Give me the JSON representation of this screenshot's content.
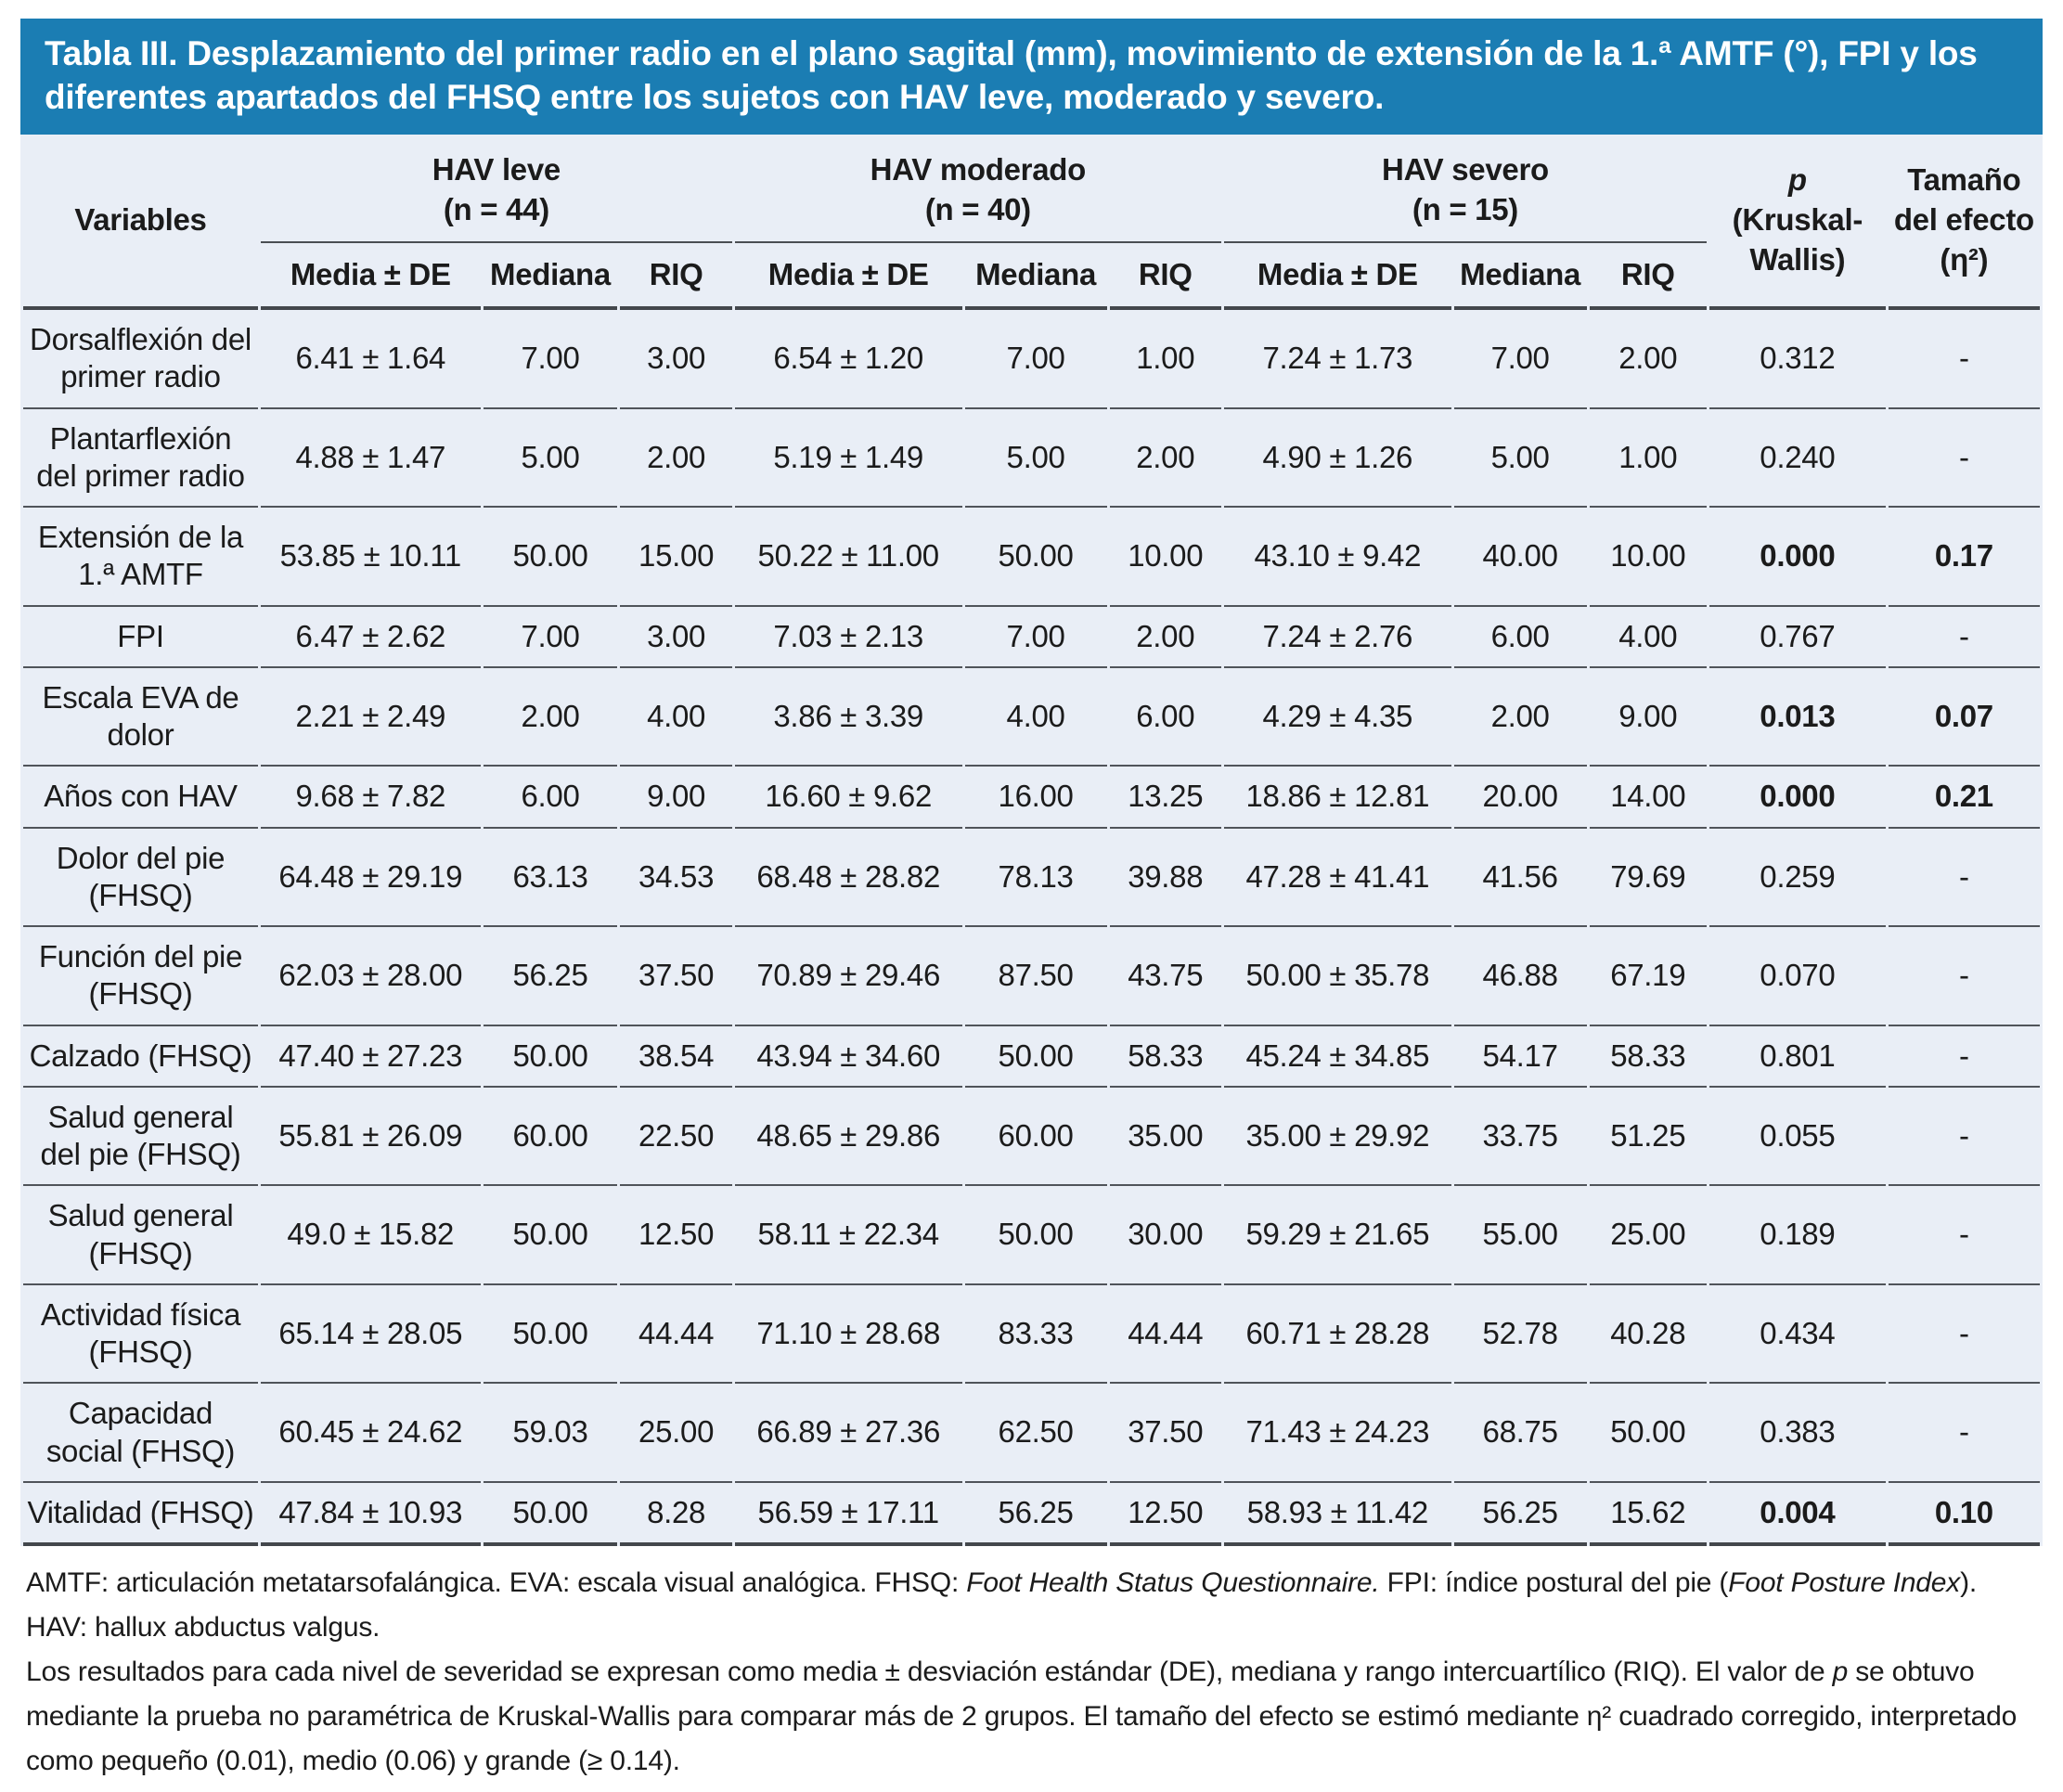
{
  "title": "Tabla III. Desplazamiento del primer radio en el plano sagital (mm), movimiento de extensión de la 1.ª AMTF (°), FPI y los diferentes apartados del FHSQ entre los sujetos con HAV leve, moderado y severo.",
  "colors": {
    "title_bar_bg": "#1b7db3",
    "title_text": "#ffffff",
    "table_bg": "#e9eef6",
    "rule": "#4a4e53",
    "text": "#1b1b1b"
  },
  "header": {
    "variables": "Variables",
    "groups": [
      {
        "name": "HAV leve",
        "n": "(n = 44)"
      },
      {
        "name": "HAV moderado",
        "n": "(n = 40)"
      },
      {
        "name": "HAV severo",
        "n": "(n = 15)"
      }
    ],
    "stat_cols": [
      "Media ± DE",
      "Mediana",
      "RIQ"
    ],
    "p_label": "p",
    "p_sub": "(Kruskal-Wallis)",
    "effect_label": "Tamaño del efecto (η²)"
  },
  "rows": [
    {
      "label": "Dorsalflexión del primer radio",
      "sig": false,
      "cells": [
        "6.41 ± 1.64",
        "7.00",
        "3.00",
        "6.54 ± 1.20",
        "7.00",
        "1.00",
        "7.24 ± 1.73",
        "7.00",
        "2.00",
        "0.312",
        "-"
      ]
    },
    {
      "label": "Plantarflexión del primer radio",
      "sig": false,
      "cells": [
        "4.88 ± 1.47",
        "5.00",
        "2.00",
        "5.19 ± 1.49",
        "5.00",
        "2.00",
        "4.90 ± 1.26",
        "5.00",
        "1.00",
        "0.240",
        "-"
      ]
    },
    {
      "label": "Extensión de la 1.ª AMTF",
      "sig": true,
      "cells": [
        "53.85 ± 10.11",
        "50.00",
        "15.00",
        "50.22 ± 11.00",
        "50.00",
        "10.00",
        "43.10 ± 9.42",
        "40.00",
        "10.00",
        "0.000",
        "0.17"
      ]
    },
    {
      "label": "FPI",
      "sig": false,
      "cells": [
        "6.47 ± 2.62",
        "7.00",
        "3.00",
        "7.03 ± 2.13",
        "7.00",
        "2.00",
        "7.24 ± 2.76",
        "6.00",
        "4.00",
        "0.767",
        "-"
      ]
    },
    {
      "label": "Escala EVA de dolor",
      "sig": true,
      "cells": [
        "2.21 ± 2.49",
        "2.00",
        "4.00",
        "3.86 ± 3.39",
        "4.00",
        "6.00",
        "4.29 ± 4.35",
        "2.00",
        "9.00",
        "0.013",
        "0.07"
      ]
    },
    {
      "label": "Años con HAV",
      "sig": true,
      "cells": [
        "9.68 ± 7.82",
        "6.00",
        "9.00",
        "16.60 ± 9.62",
        "16.00",
        "13.25",
        "18.86 ± 12.81",
        "20.00",
        "14.00",
        "0.000",
        "0.21"
      ]
    },
    {
      "label": "Dolor del pie (FHSQ)",
      "sig": false,
      "cells": [
        "64.48 ± 29.19",
        "63.13",
        "34.53",
        "68.48 ± 28.82",
        "78.13",
        "39.88",
        "47.28 ± 41.41",
        "41.56",
        "79.69",
        "0.259",
        "-"
      ]
    },
    {
      "label": "Función del pie (FHSQ)",
      "sig": false,
      "cells": [
        "62.03 ± 28.00",
        "56.25",
        "37.50",
        "70.89 ± 29.46",
        "87.50",
        "43.75",
        "50.00 ± 35.78",
        "46.88",
        "67.19",
        "0.070",
        "-"
      ]
    },
    {
      "label": "Calzado (FHSQ)",
      "sig": false,
      "cells": [
        "47.40 ± 27.23",
        "50.00",
        "38.54",
        "43.94 ± 34.60",
        "50.00",
        "58.33",
        "45.24 ± 34.85",
        "54.17",
        "58.33",
        "0.801",
        "-"
      ]
    },
    {
      "label": "Salud general del pie (FHSQ)",
      "sig": false,
      "cells": [
        "55.81 ± 26.09",
        "60.00",
        "22.50",
        "48.65 ± 29.86",
        "60.00",
        "35.00",
        "35.00 ± 29.92",
        "33.75",
        "51.25",
        "0.055",
        "-"
      ]
    },
    {
      "label": "Salud general (FHSQ)",
      "sig": false,
      "cells": [
        "49.0 ± 15.82",
        "50.00",
        "12.50",
        "58.11 ± 22.34",
        "50.00",
        "30.00",
        "59.29 ± 21.65",
        "55.00",
        "25.00",
        "0.189",
        "-"
      ]
    },
    {
      "label": "Actividad física (FHSQ)",
      "sig": false,
      "cells": [
        "65.14 ± 28.05",
        "50.00",
        "44.44",
        "71.10 ± 28.68",
        "83.33",
        "44.44",
        "60.71 ± 28.28",
        "52.78",
        "40.28",
        "0.434",
        "-"
      ]
    },
    {
      "label": "Capacidad social (FHSQ)",
      "sig": false,
      "cells": [
        "60.45 ± 24.62",
        "59.03",
        "25.00",
        "66.89 ± 27.36",
        "62.50",
        "37.50",
        "71.43 ± 24.23",
        "68.75",
        "50.00",
        "0.383",
        "-"
      ]
    },
    {
      "label": "Vitalidad (FHSQ)",
      "sig": true,
      "cells": [
        "47.84 ± 10.93",
        "50.00",
        "8.28",
        "56.59 ± 17.11",
        "56.25",
        "12.50",
        "58.93 ± 11.42",
        "56.25",
        "15.62",
        "0.004",
        "0.10"
      ]
    }
  ],
  "footnotes": [
    [
      {
        "t": "AMTF: articulación metatarsofalángica. EVA: escala visual analógica. FHSQ: "
      },
      {
        "t": "Foot Health Status Questionnaire.",
        "i": true
      },
      {
        "t": " FPI: índice postural del pie ("
      },
      {
        "t": "Foot Posture Index",
        "i": true
      },
      {
        "t": "). HAV: hallux abductus valgus."
      }
    ],
    [
      {
        "t": "Los resultados para cada nivel de severidad se expresan como media ± desviación estándar (DE), mediana y rango intercuartílico (RIQ). El valor de "
      },
      {
        "t": "p",
        "i": true
      },
      {
        "t": " se obtuvo mediante la prueba no paramétrica de Kruskal-Wallis para comparar más de 2 grupos. El tamaño del efecto se estimó mediante η² cuadrado corregido, interpretado como pequeño (0.01), medio (0.06) y grande (≥ 0.14)."
      }
    ]
  ]
}
